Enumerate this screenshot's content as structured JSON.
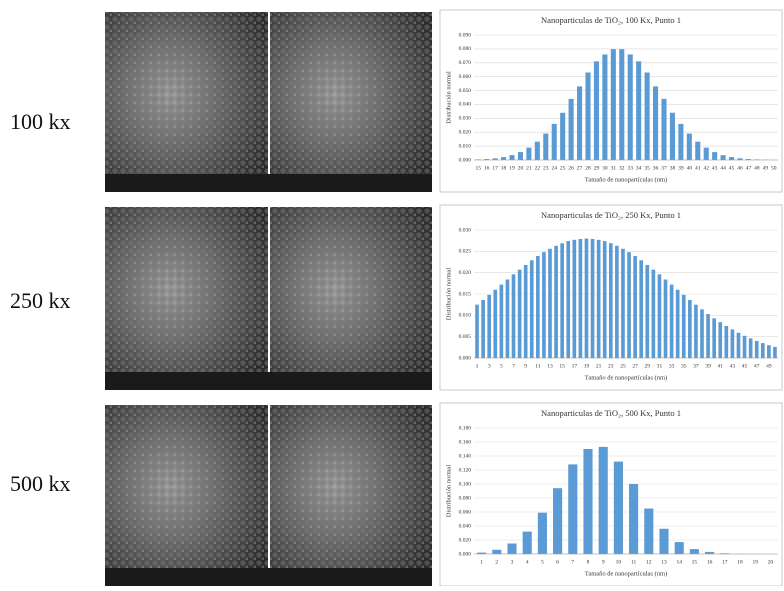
{
  "rows": [
    {
      "label": "100 kx"
    },
    {
      "label": "250 kx"
    },
    {
      "label": "500 kx"
    }
  ],
  "chart_data": [
    {
      "type": "bar",
      "title": "Nanoparticulas de TiO₂, 100 Kx, Punto 1",
      "ylabel": "Distribución normal",
      "xlabel": "Tamaño de nanopartículas (nm)",
      "color": "#5b9bd5",
      "grid": true,
      "categories": [
        "15",
        "16",
        "17",
        "18",
        "19",
        "20",
        "21",
        "22",
        "23",
        "24",
        "25",
        "26",
        "27",
        "28",
        "29",
        "30",
        "31",
        "32",
        "33",
        "34",
        "35",
        "36",
        "37",
        "38",
        "39",
        "40",
        "41",
        "42",
        "43",
        "44",
        "45",
        "46",
        "47",
        "48",
        "49",
        "50"
      ],
      "values": [
        0.0004,
        0.0007,
        0.0012,
        0.0021,
        0.0035,
        0.0057,
        0.0089,
        0.0132,
        0.019,
        0.026,
        0.034,
        0.044,
        0.053,
        0.063,
        0.071,
        0.076,
        0.0798,
        0.0798,
        0.076,
        0.071,
        0.063,
        0.053,
        0.044,
        0.034,
        0.026,
        0.019,
        0.0132,
        0.0089,
        0.0057,
        0.0035,
        0.0021,
        0.0012,
        0.0007,
        0.0004,
        0.0002,
        0.0001
      ],
      "ylim": [
        0,
        0.09
      ],
      "yticks": [
        {
          "value": 0,
          "label": "0.000"
        },
        {
          "value": 0.01,
          "label": "0.010"
        },
        {
          "value": 0.02,
          "label": "0.020"
        },
        {
          "value": 0.03,
          "label": "0.030"
        },
        {
          "value": 0.04,
          "label": "0.040"
        },
        {
          "value": 0.05,
          "label": "0.050"
        },
        {
          "value": 0.06,
          "label": "0.060"
        },
        {
          "value": 0.07,
          "label": "0.070"
        },
        {
          "value": 0.08,
          "label": "0.080"
        },
        {
          "value": 0.09,
          "label": "0.090"
        }
      ]
    },
    {
      "type": "bar",
      "title": "Nanoparticulas de TiO₂, 250 Kx, Punto 1",
      "ylabel": "Distribución normal",
      "xlabel": "Tamaño de nanopartículas (nm)",
      "color": "#5b9bd5",
      "grid": true,
      "categories": [
        "1",
        null,
        "3",
        null,
        "5",
        null,
        "7",
        null,
        "9",
        null,
        "11",
        null,
        "13",
        null,
        "15",
        null,
        "17",
        null,
        "19",
        null,
        "21",
        null,
        "23",
        null,
        "25",
        null,
        "27",
        null,
        "29",
        null,
        "31",
        null,
        "33",
        null,
        "35",
        null,
        "37",
        null,
        "39",
        null,
        "41",
        null,
        "43",
        null,
        "45",
        null,
        "47",
        null,
        "49",
        null
      ],
      "values": [
        0.0125,
        0.0136,
        0.0148,
        0.016,
        0.0172,
        0.0184,
        0.0196,
        0.0207,
        0.0218,
        0.0229,
        0.0239,
        0.0248,
        0.0256,
        0.0263,
        0.0269,
        0.0274,
        0.0277,
        0.0279,
        0.028,
        0.0279,
        0.0277,
        0.0274,
        0.0269,
        0.0263,
        0.0256,
        0.0248,
        0.0239,
        0.0229,
        0.0218,
        0.0207,
        0.0196,
        0.0184,
        0.0172,
        0.016,
        0.0148,
        0.0136,
        0.0125,
        0.0114,
        0.0103,
        0.0093,
        0.0084,
        0.0075,
        0.0067,
        0.0059,
        0.0052,
        0.0046,
        0.004,
        0.0035,
        0.003,
        0.0026
      ],
      "ylim": [
        0,
        0.03
      ],
      "yticks": [
        {
          "value": 0,
          "label": "0.000"
        },
        {
          "value": 0.005,
          "label": "0.005"
        },
        {
          "value": 0.01,
          "label": "0.010"
        },
        {
          "value": 0.015,
          "label": "0.015"
        },
        {
          "value": 0.02,
          "label": "0.020"
        },
        {
          "value": 0.025,
          "label": "0.025"
        },
        {
          "value": 0.03,
          "label": "0.030"
        }
      ]
    },
    {
      "type": "bar",
      "title": "Nanoparticulas de TiO₂, 500 Kx, Punto 1",
      "ylabel": "Distribución normal",
      "xlabel": "Tamaño de nanopartículas (nm)",
      "color": "#5b9bd5",
      "grid": true,
      "categories": [
        "1",
        "2",
        "3",
        "4",
        "5",
        "6",
        "7",
        "8",
        "9",
        "10",
        "11",
        "12",
        "13",
        "14",
        "15",
        "16",
        "17",
        "18",
        "19",
        "20"
      ],
      "values": [
        0.002,
        0.006,
        0.015,
        0.032,
        0.059,
        0.094,
        0.128,
        0.15,
        0.153,
        0.132,
        0.1,
        0.065,
        0.036,
        0.017,
        0.007,
        0.003,
        0.001,
        0.0003,
        0.0001,
        0
      ],
      "ylim": [
        0,
        0.18
      ],
      "yticks": [
        {
          "value": 0,
          "label": "0.000"
        },
        {
          "value": 0.02,
          "label": "0.020"
        },
        {
          "value": 0.04,
          "label": "0.040"
        },
        {
          "value": 0.06,
          "label": "0.060"
        },
        {
          "value": 0.08,
          "label": "0.080"
        },
        {
          "value": 0.1,
          "label": "0.100"
        },
        {
          "value": 0.12,
          "label": "0.120"
        },
        {
          "value": 0.14,
          "label": "0.140"
        },
        {
          "value": 0.16,
          "label": "0.160"
        },
        {
          "value": 0.18,
          "label": "0.180"
        }
      ]
    }
  ]
}
